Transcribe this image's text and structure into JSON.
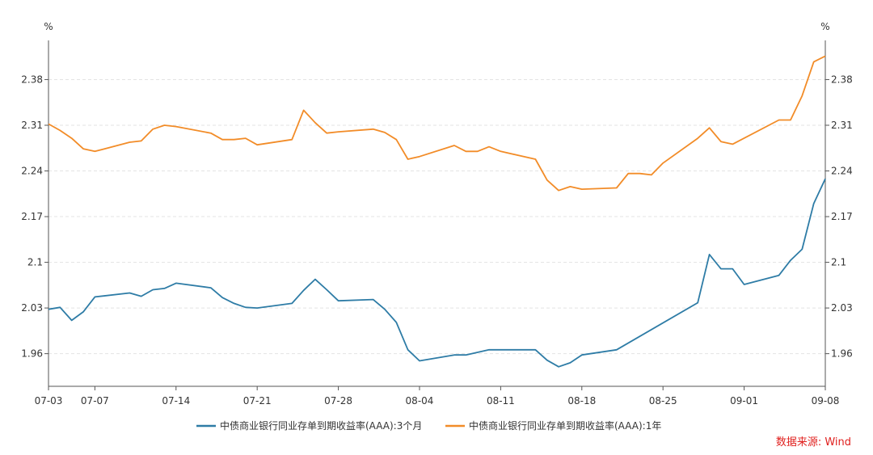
{
  "chart_data": {
    "type": "line",
    "title": "",
    "xlabel": "",
    "y_unit_left": "%",
    "y_unit_right": "%",
    "x_start": "07-03",
    "x_end": "09-08",
    "x_tick_labels": [
      "07-03",
      "07-07",
      "07-14",
      "07-21",
      "07-28",
      "08-04",
      "08-11",
      "08-18",
      "08-25",
      "09-01",
      "09-08"
    ],
    "ylim": [
      1.91,
      2.44
    ],
    "y_ticks": [
      1.96,
      2.03,
      2.1,
      2.17,
      2.24,
      2.31,
      2.38
    ],
    "y_tick_labels": [
      "1.96",
      "2.03",
      "2.1",
      "2.17",
      "2.24",
      "2.31",
      "2.38"
    ],
    "grid": true,
    "legend_position": "bottom",
    "series": [
      {
        "name": "中债商业银行同业存单到期收益率(AAA):3个月",
        "color": "#2e7ca6",
        "points": [
          [
            "07-03",
            2.028
          ],
          [
            "07-04",
            2.031
          ],
          [
            "07-05",
            2.011
          ],
          [
            "07-06",
            2.024
          ],
          [
            "07-07",
            2.047
          ],
          [
            "07-10",
            2.053
          ],
          [
            "07-11",
            2.048
          ],
          [
            "07-12",
            2.058
          ],
          [
            "07-13",
            2.06
          ],
          [
            "07-14",
            2.068
          ],
          [
            "07-17",
            2.061
          ],
          [
            "07-18",
            2.046
          ],
          [
            "07-19",
            2.037
          ],
          [
            "07-20",
            2.031
          ],
          [
            "07-21",
            2.03
          ],
          [
            "07-24",
            2.037
          ],
          [
            "07-25",
            2.057
          ],
          [
            "07-26",
            2.074
          ],
          [
            "07-27",
            2.058
          ],
          [
            "07-28",
            2.041
          ],
          [
            "07-31",
            2.043
          ],
          [
            "08-01",
            2.028
          ],
          [
            "08-02",
            2.008
          ],
          [
            "08-03",
            1.966
          ],
          [
            "08-04",
            1.949
          ],
          [
            "08-07",
            1.958
          ],
          [
            "08-08",
            1.958
          ],
          [
            "08-09",
            1.962
          ],
          [
            "08-10",
            1.966
          ],
          [
            "08-11",
            1.966
          ],
          [
            "08-14",
            1.966
          ],
          [
            "08-15",
            1.95
          ],
          [
            "08-16",
            1.94
          ],
          [
            "08-17",
            1.946
          ],
          [
            "08-18",
            1.958
          ],
          [
            "08-21",
            1.966
          ],
          [
            "08-28",
            2.038
          ],
          [
            "08-29",
            2.112
          ],
          [
            "08-30",
            2.09
          ],
          [
            "08-31",
            2.09
          ],
          [
            "09-01",
            2.066
          ],
          [
            "09-04",
            2.08
          ],
          [
            "09-05",
            2.103
          ],
          [
            "09-06",
            2.12
          ],
          [
            "09-07",
            2.19
          ],
          [
            "09-08",
            2.228
          ]
        ]
      },
      {
        "name": "中债商业银行同业存单到期收益率(AAA):1年",
        "color": "#f28c28",
        "points": [
          [
            "07-03",
            2.312
          ],
          [
            "07-04",
            2.302
          ],
          [
            "07-05",
            2.29
          ],
          [
            "07-06",
            2.274
          ],
          [
            "07-07",
            2.27
          ],
          [
            "07-10",
            2.284
          ],
          [
            "07-11",
            2.286
          ],
          [
            "07-12",
            2.304
          ],
          [
            "07-13",
            2.31
          ],
          [
            "07-14",
            2.308
          ],
          [
            "07-17",
            2.298
          ],
          [
            "07-18",
            2.288
          ],
          [
            "07-19",
            2.288
          ],
          [
            "07-20",
            2.29
          ],
          [
            "07-21",
            2.28
          ],
          [
            "07-24",
            2.288
          ],
          [
            "07-25",
            2.333
          ],
          [
            "07-26",
            2.314
          ],
          [
            "07-27",
            2.298
          ],
          [
            "07-28",
            2.3
          ],
          [
            "07-31",
            2.304
          ],
          [
            "08-01",
            2.299
          ],
          [
            "08-02",
            2.288
          ],
          [
            "08-03",
            2.258
          ],
          [
            "08-04",
            2.262
          ],
          [
            "08-07",
            2.279
          ],
          [
            "08-08",
            2.27
          ],
          [
            "08-09",
            2.27
          ],
          [
            "08-10",
            2.277
          ],
          [
            "08-11",
            2.27
          ],
          [
            "08-14",
            2.258
          ],
          [
            "08-15",
            2.226
          ],
          [
            "08-16",
            2.21
          ],
          [
            "08-17",
            2.216
          ],
          [
            "08-18",
            2.212
          ],
          [
            "08-21",
            2.214
          ],
          [
            "08-22",
            2.236
          ],
          [
            "08-23",
            2.236
          ],
          [
            "08-24",
            2.234
          ],
          [
            "08-25",
            2.252
          ],
          [
            "08-28",
            2.29
          ],
          [
            "08-29",
            2.306
          ],
          [
            "08-30",
            2.285
          ],
          [
            "08-31",
            2.281
          ],
          [
            "09-04",
            2.318
          ],
          [
            "09-05",
            2.318
          ],
          [
            "09-06",
            2.355
          ],
          [
            "09-07",
            2.407
          ],
          [
            "09-08",
            2.416
          ]
        ]
      }
    ]
  },
  "source": "数据来源: Wind"
}
